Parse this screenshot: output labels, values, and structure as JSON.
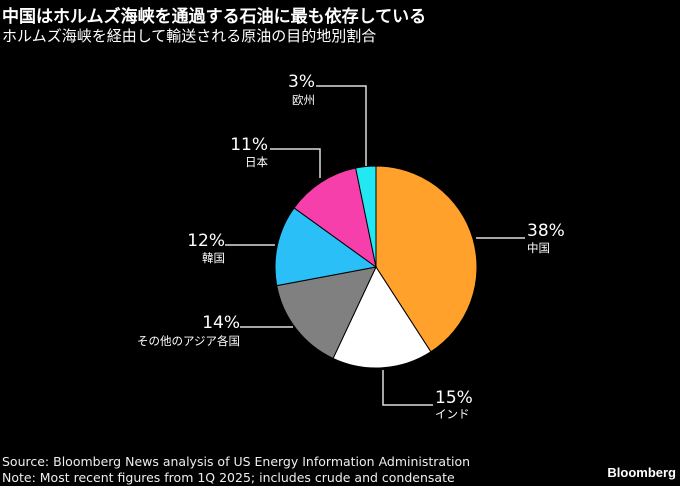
{
  "title": "中国はホルムズ海峡を通過する石油に最も依存している",
  "subtitle": "ホルムズ海峡を経由して輸送される原油の目的地別割合",
  "chart_data": {
    "type": "pie",
    "title": "中国はホルムズ海峡を通過する石油に最も依存している",
    "slices": [
      {
        "label": "中国",
        "value": 38,
        "value_label": "38%",
        "color": "#ffa12b"
      },
      {
        "label": "インド",
        "value": 15,
        "value_label": "15%",
        "color": "#ffffff"
      },
      {
        "label": "その他のアジア各国",
        "value": 14,
        "value_label": "14%",
        "color": "#808080"
      },
      {
        "label": "韓国",
        "value": 12,
        "value_label": "12%",
        "color": "#2bbff8"
      },
      {
        "label": "日本",
        "value": 11,
        "value_label": "11%",
        "color": "#f73fac"
      },
      {
        "label": "欧州",
        "value": 3,
        "value_label": "3%",
        "color": "#22e8f4"
      }
    ]
  },
  "footer": {
    "source": "Source: Bloomberg News analysis of US Energy Information Administration",
    "note": "Note: Most recent figures from 1Q 2025; includes crude and condensate",
    "brand": "Bloomberg"
  }
}
